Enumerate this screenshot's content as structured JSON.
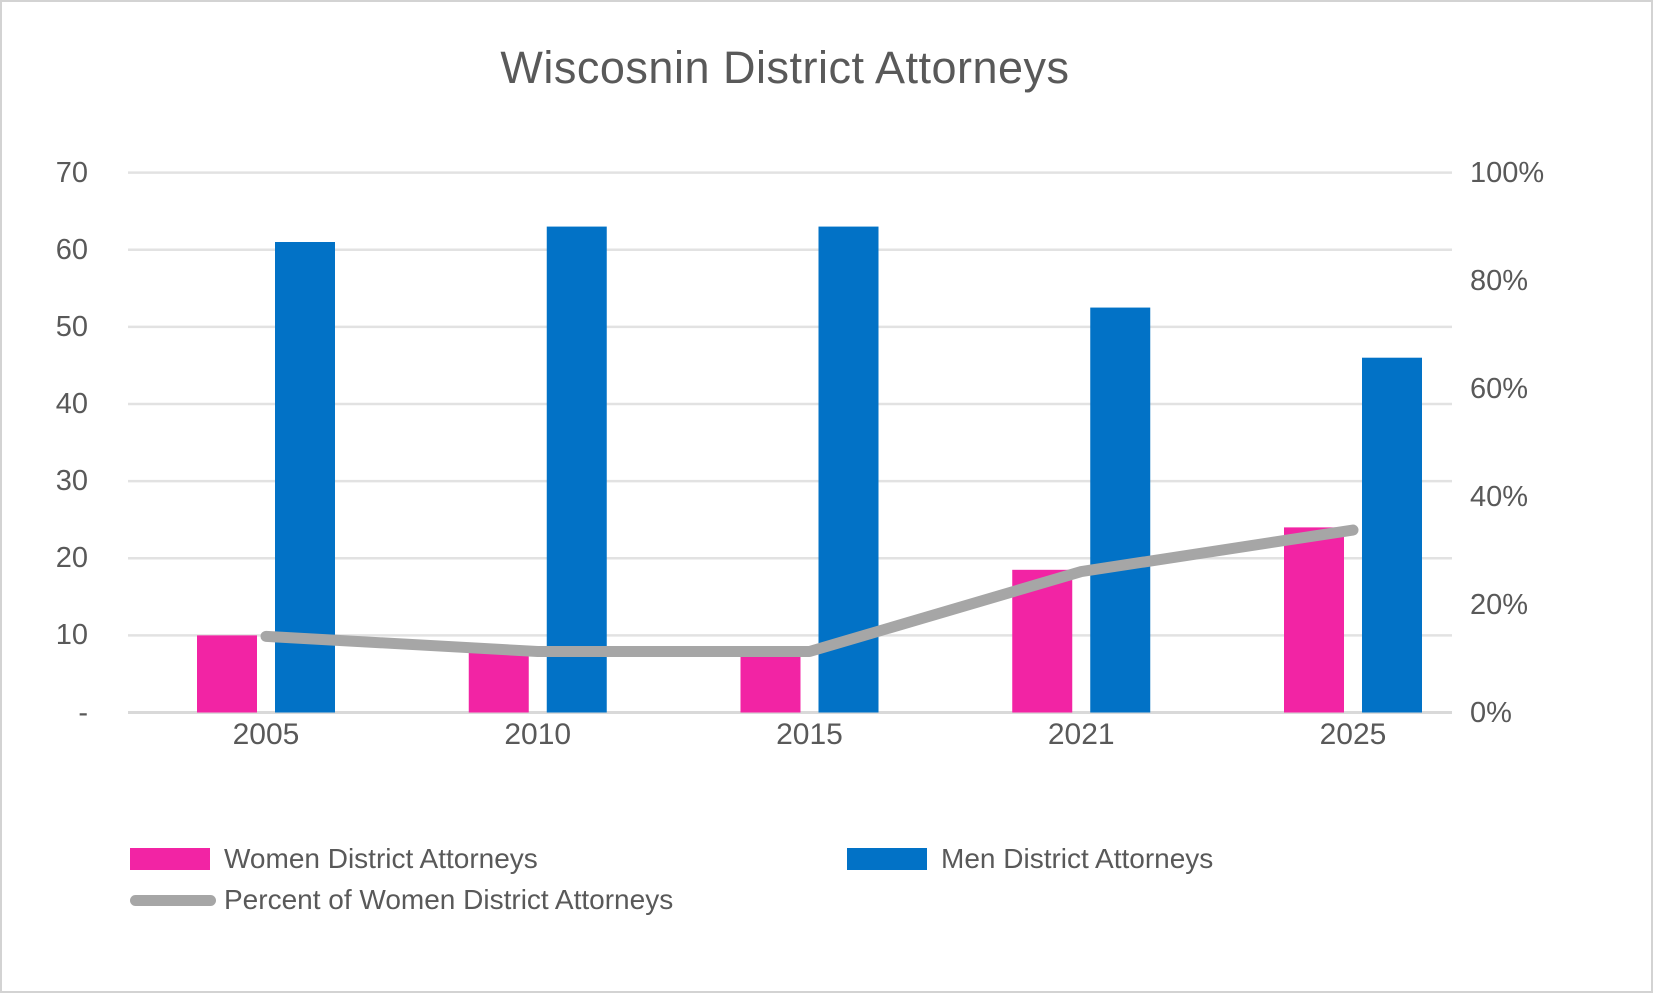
{
  "title": "Wiscosnin District Attorneys",
  "chart_data": {
    "type": "combo",
    "categories": [
      "2005",
      "2010",
      "2015",
      "2021",
      "2025"
    ],
    "series": [
      {
        "name": "Women District Attorneys",
        "type": "bar",
        "axis": "left",
        "color": "#F224A4",
        "values": [
          10,
          8,
          8,
          18.5,
          24
        ]
      },
      {
        "name": "Men District Attorneys",
        "type": "bar",
        "axis": "left",
        "color": "#0272C6",
        "values": [
          61,
          63,
          63,
          52.5,
          46
        ]
      },
      {
        "name": "Percent of Women District Attorneys",
        "type": "line",
        "axis": "right",
        "color": "#A6A6A6",
        "values": [
          14.1,
          11.3,
          11.3,
          26.1,
          33.8
        ]
      }
    ],
    "left_axis": {
      "min": 0,
      "max": 70,
      "tick_labels": [
        "70",
        "60",
        "50",
        "40",
        "30",
        "20",
        "10",
        "-"
      ],
      "tick_values": [
        70,
        60,
        50,
        40,
        30,
        20,
        10,
        0
      ]
    },
    "right_axis": {
      "min": 0,
      "max": 100,
      "tick_labels": [
        "100%",
        "80%",
        "60%",
        "40%",
        "20%",
        "0%"
      ],
      "tick_values": [
        100,
        80,
        60,
        40,
        20,
        0
      ]
    },
    "grid": true,
    "legend_position": "bottom-left"
  },
  "colors": {
    "gridline": "#E2E2E2",
    "axis_line": "#D9D9D9",
    "text": "#595959",
    "background": "#FFFFFF"
  }
}
